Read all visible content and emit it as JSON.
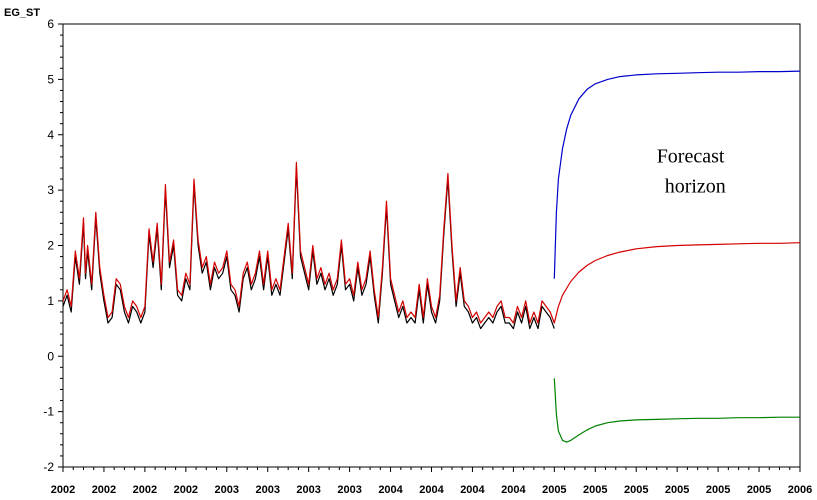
{
  "chart_data": {
    "type": "line",
    "ylabel": "EG_ST",
    "ylim": [
      -2,
      6
    ],
    "yticks": [
      -2,
      -1,
      0,
      1,
      2,
      3,
      4,
      5,
      6
    ],
    "ytick_labels": [
      "-2",
      "-1",
      "0",
      "1",
      "2",
      "3",
      "4",
      "5",
      "6"
    ],
    "xlim": [
      0,
      18
    ],
    "xticks": [
      0,
      1,
      2,
      3,
      4,
      5,
      6,
      7,
      8,
      9,
      10,
      11,
      12,
      13,
      14,
      15,
      16,
      17,
      18
    ],
    "xtick_labels": [
      "2002",
      "2002",
      "2002",
      "2002",
      "2003",
      "2003",
      "2003",
      "2003",
      "2004",
      "2004",
      "2004",
      "2004",
      "2005",
      "2005",
      "2005",
      "2005",
      "2005",
      "2005",
      "2006"
    ],
    "annotation": {
      "lines": [
        "Forecast",
        "horizon"
      ],
      "x": 14.5,
      "y": 3.5
    },
    "series": [
      {
        "color": "#000000",
        "role": "actual",
        "x": [
          0,
          0.1,
          0.2,
          0.3,
          0.4,
          0.5,
          0.55,
          0.6,
          0.7,
          0.8,
          0.9,
          1.0,
          1.1,
          1.2,
          1.3,
          1.4,
          1.5,
          1.6,
          1.7,
          1.8,
          1.9,
          2.0,
          2.1,
          2.2,
          2.3,
          2.4,
          2.5,
          2.6,
          2.7,
          2.8,
          2.9,
          3.0,
          3.1,
          3.2,
          3.3,
          3.4,
          3.5,
          3.6,
          3.7,
          3.8,
          3.9,
          4.0,
          4.1,
          4.2,
          4.3,
          4.4,
          4.5,
          4.6,
          4.7,
          4.8,
          4.9,
          5.0,
          5.1,
          5.2,
          5.3,
          5.4,
          5.5,
          5.6,
          5.7,
          5.8,
          5.9,
          6.0,
          6.1,
          6.2,
          6.3,
          6.4,
          6.5,
          6.6,
          6.7,
          6.8,
          6.9,
          7.0,
          7.1,
          7.2,
          7.3,
          7.4,
          7.5,
          7.6,
          7.7,
          7.8,
          7.9,
          8.0,
          8.1,
          8.2,
          8.3,
          8.4,
          8.5,
          8.6,
          8.7,
          8.8,
          8.9,
          9.0,
          9.1,
          9.2,
          9.3,
          9.4,
          9.5,
          9.6,
          9.7,
          9.8,
          9.9,
          10.0,
          10.1,
          10.2,
          10.3,
          10.4,
          10.5,
          10.6,
          10.7,
          10.8,
          10.9,
          11.0,
          11.1,
          11.2,
          11.3,
          11.4,
          11.5,
          11.6,
          11.7,
          11.8,
          11.9,
          12.0
        ],
        "y": [
          0.9,
          1.1,
          0.8,
          1.8,
          1.3,
          2.4,
          1.4,
          1.9,
          1.2,
          2.5,
          1.5,
          1.0,
          0.6,
          0.7,
          1.3,
          1.2,
          0.8,
          0.6,
          0.9,
          0.8,
          0.6,
          0.8,
          2.2,
          1.6,
          2.3,
          1.2,
          3.0,
          1.6,
          2.0,
          1.1,
          1.0,
          1.4,
          1.2,
          3.1,
          2.0,
          1.5,
          1.7,
          1.2,
          1.6,
          1.4,
          1.5,
          1.8,
          1.2,
          1.1,
          0.8,
          1.4,
          1.6,
          1.2,
          1.4,
          1.8,
          1.2,
          1.8,
          1.1,
          1.3,
          1.1,
          1.7,
          2.3,
          1.4,
          3.4,
          1.8,
          1.5,
          1.2,
          1.9,
          1.3,
          1.5,
          1.2,
          1.4,
          1.1,
          1.3,
          2.0,
          1.2,
          1.3,
          1.0,
          1.6,
          1.1,
          1.3,
          1.8,
          1.1,
          0.6,
          1.5,
          2.7,
          1.3,
          1.0,
          0.7,
          0.9,
          0.6,
          0.7,
          0.6,
          1.2,
          0.6,
          1.3,
          0.8,
          0.6,
          1.0,
          2.2,
          3.2,
          1.9,
          0.9,
          1.5,
          0.9,
          0.8,
          0.6,
          0.7,
          0.5,
          0.6,
          0.7,
          0.6,
          0.8,
          0.9,
          0.6,
          0.6,
          0.5,
          0.8,
          0.6,
          0.9,
          0.5,
          0.7,
          0.5,
          0.9,
          0.8,
          0.7,
          0.5
        ]
      },
      {
        "color": "#d40000",
        "role": "fitted and forecast",
        "x": [
          0,
          0.1,
          0.2,
          0.3,
          0.4,
          0.5,
          0.55,
          0.6,
          0.7,
          0.8,
          0.9,
          1.0,
          1.1,
          1.2,
          1.3,
          1.4,
          1.5,
          1.6,
          1.7,
          1.8,
          1.9,
          2.0,
          2.1,
          2.2,
          2.3,
          2.4,
          2.5,
          2.6,
          2.7,
          2.8,
          2.9,
          3.0,
          3.1,
          3.2,
          3.3,
          3.4,
          3.5,
          3.6,
          3.7,
          3.8,
          3.9,
          4.0,
          4.1,
          4.2,
          4.3,
          4.4,
          4.5,
          4.6,
          4.7,
          4.8,
          4.9,
          5.0,
          5.1,
          5.2,
          5.3,
          5.4,
          5.5,
          5.6,
          5.7,
          5.8,
          5.9,
          6.0,
          6.1,
          6.2,
          6.3,
          6.4,
          6.5,
          6.6,
          6.7,
          6.8,
          6.9,
          7.0,
          7.1,
          7.2,
          7.3,
          7.4,
          7.5,
          7.6,
          7.7,
          7.8,
          7.9,
          8.0,
          8.1,
          8.2,
          8.3,
          8.4,
          8.5,
          8.6,
          8.7,
          8.8,
          8.9,
          9.0,
          9.1,
          9.2,
          9.3,
          9.4,
          9.5,
          9.6,
          9.7,
          9.8,
          9.9,
          10.0,
          10.1,
          10.2,
          10.3,
          10.4,
          10.5,
          10.6,
          10.7,
          10.8,
          10.9,
          11.0,
          11.1,
          11.2,
          11.3,
          11.4,
          11.5,
          11.6,
          11.7,
          11.8,
          11.9,
          12.0,
          12.1,
          12.2,
          12.4,
          12.6,
          12.8,
          13.0,
          13.3,
          13.6,
          14.0,
          14.5,
          15.0,
          15.5,
          16.0,
          16.5,
          17.0,
          17.5,
          18.0
        ],
        "y": [
          1.0,
          1.2,
          0.9,
          1.9,
          1.4,
          2.5,
          1.5,
          2.0,
          1.3,
          2.6,
          1.6,
          1.1,
          0.7,
          0.8,
          1.4,
          1.3,
          0.9,
          0.7,
          1.0,
          0.9,
          0.7,
          0.9,
          2.3,
          1.7,
          2.4,
          1.3,
          3.1,
          1.7,
          2.1,
          1.2,
          1.1,
          1.5,
          1.3,
          3.2,
          2.1,
          1.6,
          1.8,
          1.3,
          1.7,
          1.5,
          1.6,
          1.9,
          1.3,
          1.2,
          0.9,
          1.5,
          1.7,
          1.3,
          1.5,
          1.9,
          1.3,
          1.9,
          1.2,
          1.4,
          1.2,
          1.8,
          2.4,
          1.5,
          3.5,
          1.9,
          1.6,
          1.3,
          2.0,
          1.4,
          1.6,
          1.3,
          1.5,
          1.2,
          1.4,
          2.1,
          1.3,
          1.4,
          1.1,
          1.7,
          1.2,
          1.4,
          1.9,
          1.2,
          0.7,
          1.6,
          2.8,
          1.4,
          1.1,
          0.8,
          1.0,
          0.7,
          0.8,
          0.7,
          1.3,
          0.7,
          1.4,
          0.9,
          0.7,
          1.1,
          2.3,
          3.3,
          2.0,
          1.0,
          1.6,
          1.0,
          0.9,
          0.7,
          0.8,
          0.6,
          0.7,
          0.8,
          0.7,
          0.9,
          1.0,
          0.7,
          0.7,
          0.6,
          0.9,
          0.7,
          1.0,
          0.6,
          0.8,
          0.6,
          1.0,
          0.9,
          0.8,
          0.6,
          0.9,
          1.1,
          1.35,
          1.52,
          1.64,
          1.73,
          1.82,
          1.88,
          1.94,
          1.98,
          2.0,
          2.01,
          2.02,
          2.03,
          2.04,
          2.04,
          2.05
        ]
      },
      {
        "color": "#0000cc",
        "role": "upper bound",
        "x": [
          12.0,
          12.05,
          12.1,
          12.2,
          12.3,
          12.4,
          12.6,
          12.8,
          13.0,
          13.3,
          13.6,
          14.0,
          14.5,
          15.0,
          15.5,
          16.0,
          16.5,
          17.0,
          17.5,
          18.0
        ],
        "y": [
          1.4,
          2.6,
          3.2,
          3.75,
          4.1,
          4.35,
          4.65,
          4.82,
          4.92,
          5.0,
          5.05,
          5.08,
          5.1,
          5.11,
          5.12,
          5.13,
          5.13,
          5.14,
          5.14,
          5.15
        ]
      },
      {
        "color": "#008000",
        "role": "lower bound",
        "x": [
          12.0,
          12.05,
          12.1,
          12.2,
          12.3,
          12.4,
          12.6,
          12.8,
          13.0,
          13.3,
          13.6,
          14.0,
          14.5,
          15.0,
          15.5,
          16.0,
          16.5,
          17.0,
          17.5,
          18.0
        ],
        "y": [
          -0.4,
          -1.05,
          -1.35,
          -1.52,
          -1.55,
          -1.52,
          -1.42,
          -1.33,
          -1.26,
          -1.2,
          -1.17,
          -1.15,
          -1.14,
          -1.13,
          -1.12,
          -1.12,
          -1.11,
          -1.11,
          -1.1,
          -1.1
        ]
      }
    ]
  }
}
